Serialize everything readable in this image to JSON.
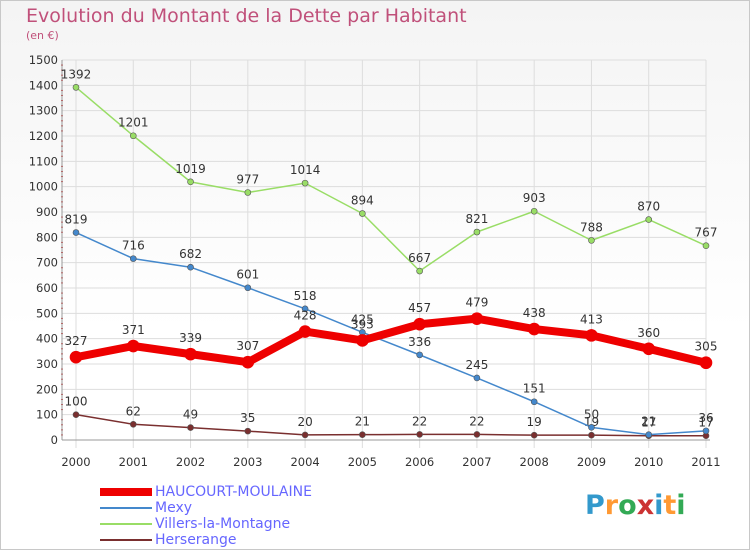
{
  "header": {
    "title": "Evolution du Montant de la Dette par Habitant",
    "subtitle": "(en €)"
  },
  "logo": {
    "text": "Proxiti",
    "colors": [
      "#3399cc",
      "#ff9933",
      "#33aa55",
      "#cc3333",
      "#3399cc",
      "#ff9933",
      "#33aa55"
    ]
  },
  "chart_data": {
    "type": "line",
    "x": [
      "2000",
      "2001",
      "2002",
      "2003",
      "2004",
      "2005",
      "2006",
      "2007",
      "2008",
      "2009",
      "2010",
      "2011"
    ],
    "ylim": [
      0,
      1500
    ],
    "yticks": [
      "0",
      "100",
      "200",
      "300",
      "400",
      "500",
      "600",
      "700",
      "800",
      "900",
      "1000",
      "1100",
      "1200",
      "1300",
      "1400",
      "1500"
    ],
    "grid": true,
    "legend_position": "bottom-left",
    "series": [
      {
        "name": "Herserange",
        "color": "#7a2f2f",
        "width": 1.5,
        "marker": 3,
        "values": [
          100,
          62,
          49,
          35,
          20,
          21,
          22,
          22,
          19,
          19,
          17,
          17
        ],
        "labels": [
          "100",
          "62",
          "49",
          "35",
          "20",
          "21",
          "22",
          "22",
          "19",
          "19",
          "17",
          "17"
        ]
      },
      {
        "name": "Villers-la-Montagne",
        "color": "#99dd66",
        "width": 1.5,
        "marker": 3,
        "values": [
          1392,
          1201,
          1019,
          977,
          1014,
          894,
          667,
          821,
          903,
          788,
          870,
          767
        ],
        "labels": [
          "1392",
          "1201",
          "1019",
          "977",
          "1014",
          "894",
          "667",
          "821",
          "903",
          "788",
          "870",
          "767"
        ]
      },
      {
        "name": "Mexy",
        "color": "#4488cc",
        "width": 1.5,
        "marker": 3,
        "values": [
          819,
          716,
          682,
          601,
          518,
          425,
          336,
          245,
          151,
          50,
          21,
          36
        ],
        "labels": [
          "819",
          "716",
          "682",
          "601",
          "518",
          "425",
          "336",
          "245",
          "151",
          "50",
          "21",
          "36"
        ]
      },
      {
        "name": "HAUCOURT-MOULAINE",
        "color": "#ee0000",
        "width": 8,
        "marker": 6,
        "values": [
          327,
          371,
          339,
          307,
          428,
          393,
          457,
          479,
          438,
          413,
          360,
          305
        ],
        "labels": [
          "327",
          "371",
          "339",
          "307",
          "428",
          "393",
          "457",
          "479",
          "438",
          "413",
          "360",
          "305"
        ]
      }
    ],
    "legend_order": [
      "HAUCOURT-MOULAINE",
      "Mexy",
      "Villers-la-Montagne",
      "Herserange"
    ]
  }
}
